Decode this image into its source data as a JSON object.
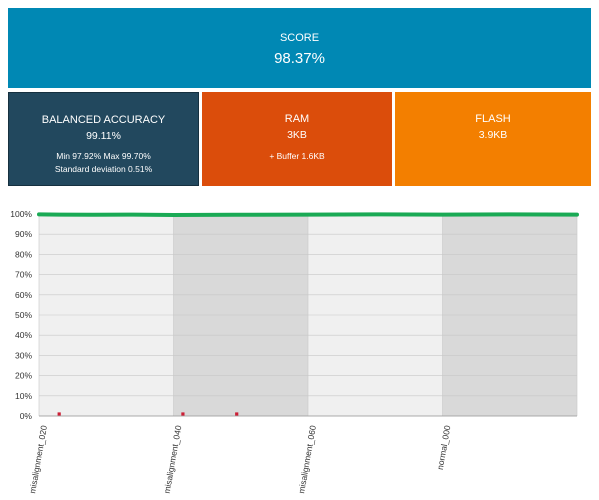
{
  "tiles": {
    "score": {
      "label": "SCORE",
      "value": "98.37%",
      "color": "#0088b4"
    },
    "balanced_accuracy": {
      "label": "BALANCED ACCURACY",
      "value": "99.11%",
      "min_max": "Min 97.92% Max 99.70%",
      "stddev": "Standard deviation 0.51%",
      "color": "#22485e"
    },
    "ram": {
      "label": "RAM",
      "value": "3KB",
      "buffer": "+ Buffer 1.6KB",
      "color": "#db4d0b"
    },
    "flash": {
      "label": "FLASH",
      "value": "3.9KB",
      "color": "#f37f00"
    }
  },
  "chart_data": {
    "type": "line",
    "title": "",
    "xlabel": "",
    "ylabel": "",
    "ylim": [
      0,
      100
    ],
    "y_ticks": [
      "0%",
      "10%",
      "20%",
      "30%",
      "40%",
      "50%",
      "60%",
      "70%",
      "80%",
      "90%",
      "100%"
    ],
    "categories": [
      "misalignment_020",
      "misalignment_040",
      "misalignment_060",
      "normal_000"
    ],
    "band_shading": [
      "light",
      "dark",
      "light",
      "dark"
    ],
    "grid": true,
    "series": [
      {
        "color": "#1aaa55",
        "points": [
          {
            "x": 0.0,
            "y": 99.8
          },
          {
            "x": 0.15,
            "y": 99.7
          },
          {
            "x": 0.4,
            "y": 99.6
          },
          {
            "x": 0.7,
            "y": 99.7
          },
          {
            "x": 1.0,
            "y": 99.5
          },
          {
            "x": 1.45,
            "y": 99.6
          },
          {
            "x": 2.0,
            "y": 99.7
          },
          {
            "x": 2.5,
            "y": 99.8
          },
          {
            "x": 3.0,
            "y": 99.7
          },
          {
            "x": 3.5,
            "y": 99.8
          },
          {
            "x": 4.0,
            "y": 99.7
          }
        ]
      },
      {
        "color": "#cc1f36",
        "points": [
          {
            "x": 0.15,
            "y": 0.5
          },
          {
            "x": 1.07,
            "y": 0.5
          },
          {
            "x": 1.47,
            "y": 0.5
          }
        ]
      }
    ]
  }
}
